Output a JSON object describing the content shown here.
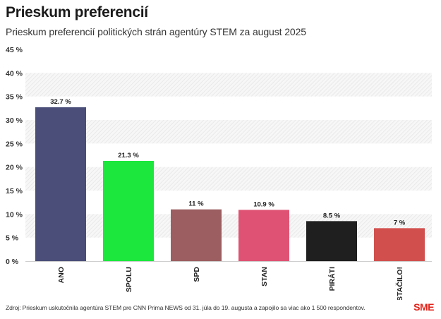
{
  "header": {
    "title": "Prieskum preferencií",
    "subtitle": "Prieskum preferencií politických strán agentúry STEM za august 2025"
  },
  "footer": {
    "source": "Zdroj: Prieskum uskutočnila agentúra STEM pre CNN Prima NEWS od 31. júla do 19. augusta a zapojilo sa viac ako 1 500 respondentov.",
    "logo": "SME"
  },
  "chart_data": {
    "type": "bar",
    "title": "Prieskum preferencií",
    "subtitle": "Prieskum preferencií politických strán agentúry STEM za august 2025",
    "categories": [
      "ANO",
      "SPOLU",
      "SPD",
      "STAN",
      "PIRÁTI",
      "STAČILO!"
    ],
    "values": [
      32.7,
      21.3,
      11,
      10.9,
      8.5,
      7
    ],
    "value_labels": [
      "32.7 %",
      "21.3 %",
      "11 %",
      "10.9 %",
      "8.5 %",
      "7 %"
    ],
    "colors": [
      "#4a4e78",
      "#1be73c",
      "#9c5e61",
      "#e05273",
      "#1f1f1f",
      "#d1504e"
    ],
    "ylim": [
      0,
      45
    ],
    "yticks": [
      0,
      5,
      10,
      15,
      20,
      25,
      30,
      35,
      40,
      45
    ],
    "ytick_labels": [
      "0 %",
      "5 %",
      "10 %",
      "15 %",
      "20 %",
      "25 %",
      "30 %",
      "35 %",
      "40 %",
      "45 %"
    ],
    "xlabel": "",
    "ylabel": "",
    "grid": "hatched alternating bands",
    "legend": "none"
  }
}
